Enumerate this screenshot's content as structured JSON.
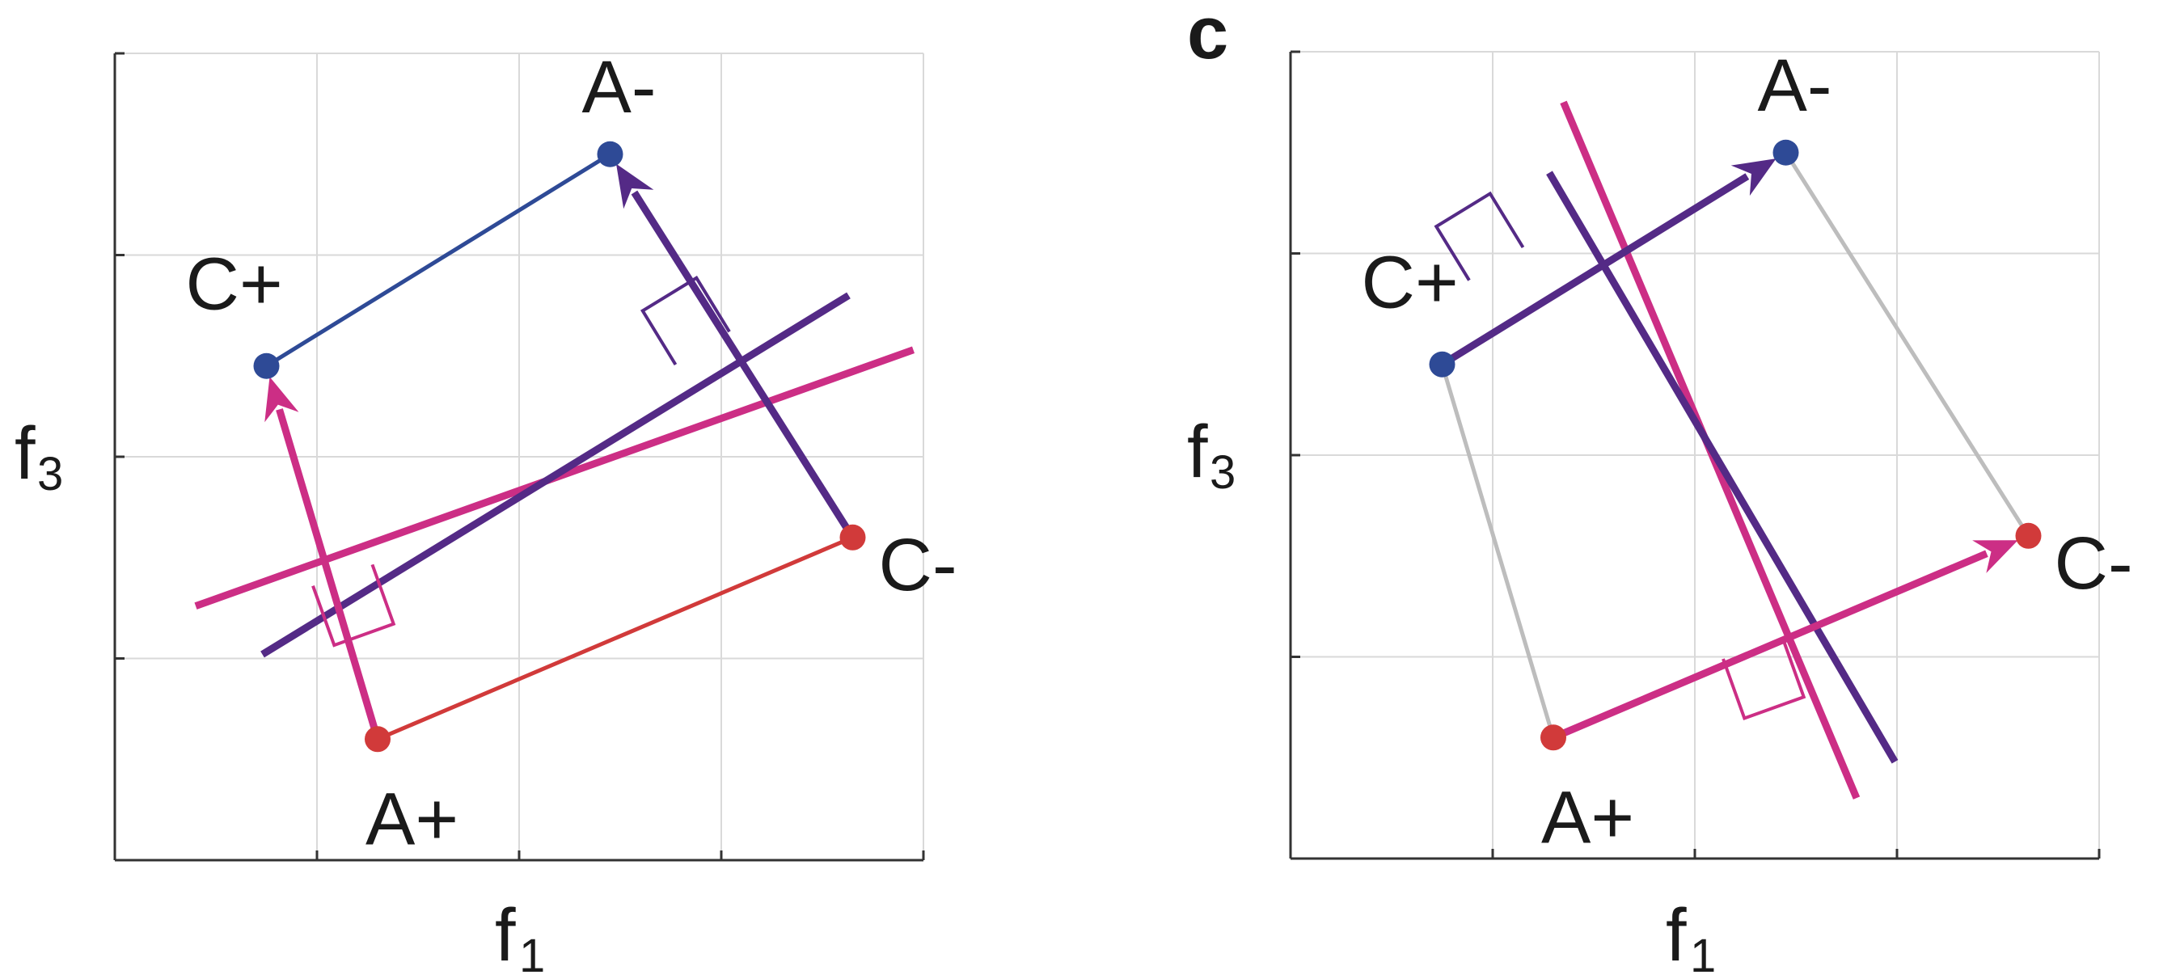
{
  "panels": [
    {
      "letter": "",
      "xlabel": "f",
      "xlabel_sub": "1",
      "ylabel": "f",
      "ylabel_sub": "3",
      "points": [
        {
          "label": "A-",
          "x": 2.45,
          "y": 3.5,
          "color": "#2e4a96"
        },
        {
          "label": "C+",
          "x": 0.75,
          "y": 2.45,
          "color": "#2e4a96"
        },
        {
          "label": "C-",
          "x": 3.65,
          "y": 1.6,
          "color": "#d13a3a"
        },
        {
          "label": "A+",
          "x": 1.3,
          "y": 0.6,
          "color": "#d13a3a"
        }
      ],
      "arrows": [
        {
          "from": "A+",
          "to": "C+",
          "color": "#cc2e85"
        },
        {
          "from": "C-",
          "to": "A-",
          "color": "#542a86"
        }
      ],
      "thin_lines": [
        {
          "from": "C+",
          "to": "A-",
          "color": "#2e4a96"
        },
        {
          "from": "A+",
          "to": "C-",
          "color": "#d13a3a"
        }
      ],
      "decision_lines": [
        {
          "x1": 0.4,
          "y1": 1.26,
          "x2": 3.95,
          "y2": 2.53,
          "color": "#cc2e85"
        },
        {
          "x1": 0.73,
          "y1": 1.02,
          "x2": 3.63,
          "y2": 2.8,
          "color": "#542a86"
        }
      ],
      "right_angles": [
        {
          "corner_x": 0.98,
          "corner_y": 1.36,
          "toward_x": 0.39,
          "toward_y": 0.14,
          "color": "#cc2e85"
        },
        {
          "corner_x": 3.04,
          "corner_y": 2.62,
          "toward_x": -0.31,
          "toward_y": -0.19,
          "color": "#542a86"
        }
      ]
    },
    {
      "letter": "c",
      "xlabel": "f",
      "xlabel_sub": "1",
      "ylabel": "f",
      "ylabel_sub": "3",
      "points": [
        {
          "label": "A-",
          "x": 2.45,
          "y": 3.5,
          "color": "#2e4a96"
        },
        {
          "label": "C+",
          "x": 0.75,
          "y": 2.45,
          "color": "#2e4a96"
        },
        {
          "label": "C-",
          "x": 3.65,
          "y": 1.6,
          "color": "#d13a3a"
        },
        {
          "label": "A+",
          "x": 1.3,
          "y": 0.6,
          "color": "#d13a3a"
        }
      ],
      "arrows": [
        {
          "from": "C+",
          "to": "A-",
          "color": "#542a86"
        },
        {
          "from": "A+",
          "to": "C-",
          "color": "#cc2e85"
        }
      ],
      "thin_lines": [
        {
          "from": "C+",
          "to": "A+",
          "color": "#bdbdbd"
        },
        {
          "from": "A-",
          "to": "C-",
          "color": "#bdbdbd"
        }
      ],
      "decision_lines": [
        {
          "x1": 1.35,
          "y1": 3.75,
          "x2": 2.8,
          "y2": 0.3,
          "color": "#cc2e85"
        },
        {
          "x1": 1.28,
          "y1": 3.4,
          "x2": 2.99,
          "y2": 0.48,
          "color": "#542a86"
        }
      ],
      "right_angles": [
        {
          "corner_x": 2.14,
          "corner_y": 0.99,
          "toward_x": 0.39,
          "toward_y": 0.14,
          "color": "#cc2e85"
        },
        {
          "corner_x": 1.15,
          "corner_y": 3.03,
          "toward_x": -0.31,
          "toward_y": -0.19,
          "color": "#542a86"
        }
      ]
    }
  ]
}
